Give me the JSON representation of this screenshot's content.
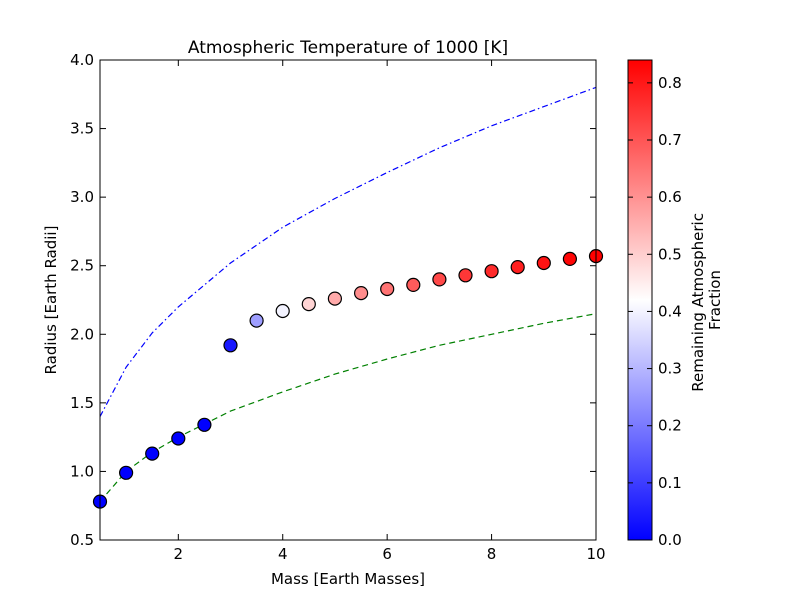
{
  "chart_data": {
    "type": "scatter",
    "title": "Atmospheric Temperature of 1000 [K]",
    "xlabel": "Mass [Earth Masses]",
    "ylabel": "Radius [Earth Radii]",
    "xlim": [
      0.5,
      10
    ],
    "ylim": [
      0.5,
      4.0
    ],
    "x_ticks": [
      2,
      4,
      6,
      8,
      10
    ],
    "y_ticks": [
      0.5,
      1.0,
      1.5,
      2.0,
      2.5,
      3.0,
      3.5,
      4.0
    ],
    "x_tick_labels": [
      "2",
      "4",
      "6",
      "8",
      "10"
    ],
    "y_tick_labels": [
      "0.5",
      "1.0",
      "1.5",
      "2.0",
      "2.5",
      "3.0",
      "3.5",
      "4.0"
    ],
    "grid": false,
    "colorbar": {
      "label_lines": [
        "Remaining Atmospheric",
        "Fraction"
      ],
      "range": [
        0.0,
        0.84
      ],
      "colormap": "bwr",
      "color_low": "#0000ff",
      "color_mid": "#ffffff",
      "color_high": "#ff0000",
      "ticks": [
        0.0,
        0.1,
        0.2,
        0.3,
        0.4,
        0.5,
        0.6,
        0.7,
        0.8
      ],
      "tick_labels": [
        "0.0",
        "0.1",
        "0.2",
        "0.3",
        "0.4",
        "0.5",
        "0.6",
        "0.7",
        "0.8"
      ]
    },
    "points": [
      {
        "x": 0.5,
        "y": 0.78,
        "c": 0.0
      },
      {
        "x": 1.0,
        "y": 0.99,
        "c": 0.0
      },
      {
        "x": 1.5,
        "y": 1.13,
        "c": 0.0
      },
      {
        "x": 2.0,
        "y": 1.24,
        "c": 0.0
      },
      {
        "x": 2.5,
        "y": 1.34,
        "c": 0.0
      },
      {
        "x": 3.0,
        "y": 1.92,
        "c": 0.04
      },
      {
        "x": 3.5,
        "y": 2.1,
        "c": 0.26
      },
      {
        "x": 4.0,
        "y": 2.17,
        "c": 0.4
      },
      {
        "x": 4.5,
        "y": 2.22,
        "c": 0.49
      },
      {
        "x": 5.0,
        "y": 2.26,
        "c": 0.56
      },
      {
        "x": 5.5,
        "y": 2.3,
        "c": 0.61
      },
      {
        "x": 6.0,
        "y": 2.33,
        "c": 0.65
      },
      {
        "x": 6.5,
        "y": 2.36,
        "c": 0.69
      },
      {
        "x": 7.0,
        "y": 2.4,
        "c": 0.72
      },
      {
        "x": 7.5,
        "y": 2.43,
        "c": 0.75
      },
      {
        "x": 8.0,
        "y": 2.46,
        "c": 0.77
      },
      {
        "x": 8.5,
        "y": 2.49,
        "c": 0.79
      },
      {
        "x": 9.0,
        "y": 2.52,
        "c": 0.81
      },
      {
        "x": 9.5,
        "y": 2.55,
        "c": 0.83
      },
      {
        "x": 10.0,
        "y": 2.57,
        "c": 0.84
      }
    ],
    "lines": [
      {
        "style": "dashdot",
        "color": "#0000ff",
        "x": [
          0.5,
          1,
          1.5,
          2,
          3,
          4,
          5,
          6,
          7,
          8,
          9,
          10
        ],
        "y": [
          1.4,
          1.76,
          2.01,
          2.2,
          2.52,
          2.78,
          2.99,
          3.18,
          3.36,
          3.52,
          3.66,
          3.8
        ]
      },
      {
        "style": "dashed",
        "color": "#008000",
        "x": [
          0.5,
          1,
          1.5,
          2,
          3,
          4,
          5,
          6,
          7,
          8,
          9,
          10
        ],
        "y": [
          0.78,
          1.0,
          1.14,
          1.25,
          1.44,
          1.58,
          1.71,
          1.82,
          1.92,
          2.0,
          2.08,
          2.15
        ]
      }
    ]
  }
}
